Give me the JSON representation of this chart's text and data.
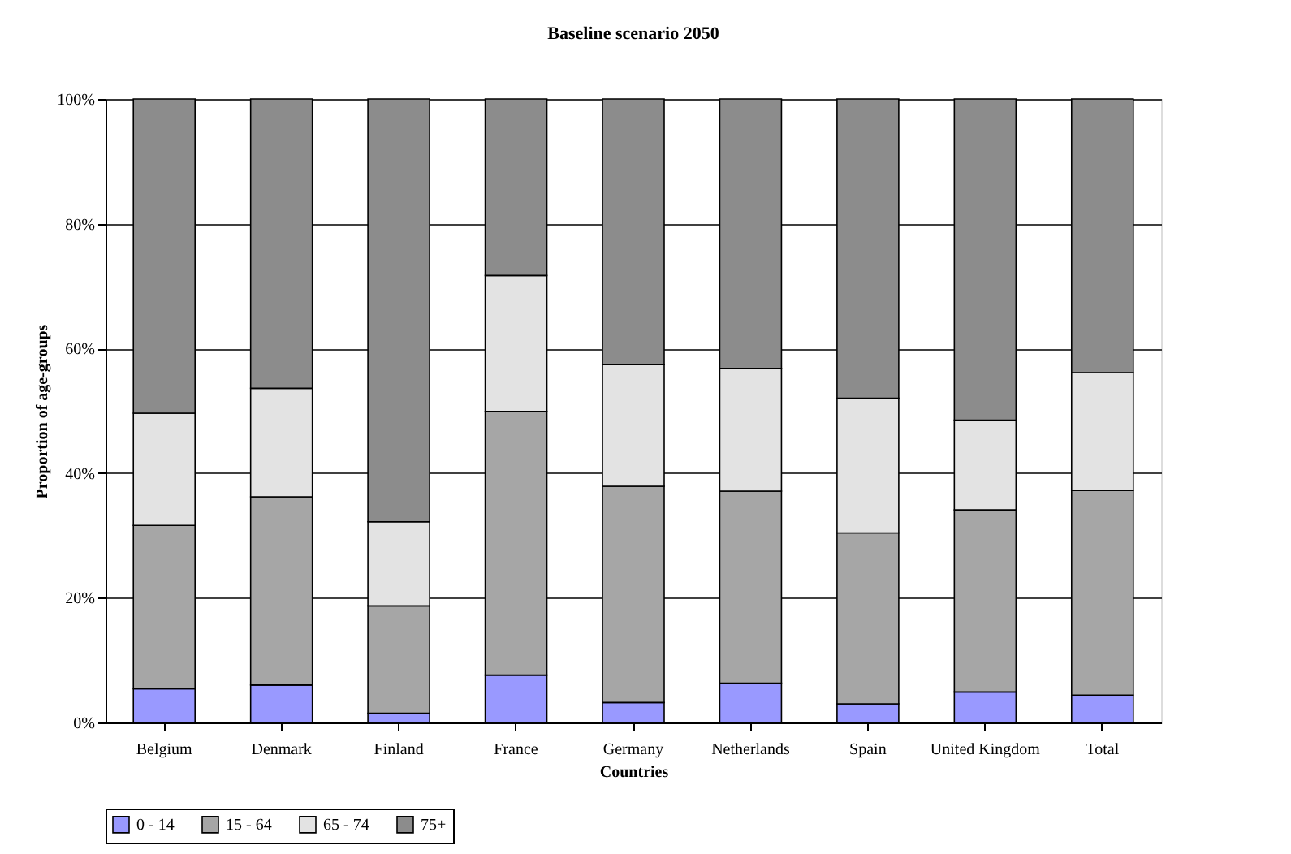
{
  "chart_data": {
    "type": "bar",
    "stacked": true,
    "title": "Baseline scenario 2050",
    "xlabel": "Countries",
    "ylabel": "Proportion of age-groups",
    "categories": [
      "Belgium",
      "Denmark",
      "Finland",
      "France",
      "Germany",
      "Netherlands",
      "Spain",
      "United Kingdom",
      "Total"
    ],
    "series": [
      {
        "name": "0 - 14",
        "color": "#9999ff",
        "values": [
          5.4,
          6.0,
          1.5,
          7.6,
          3.2,
          6.3,
          3.0,
          4.9,
          4.4
        ]
      },
      {
        "name": "15 - 64",
        "color": "#a6a6a6",
        "values": [
          26.2,
          30.2,
          17.2,
          42.3,
          34.7,
          30.8,
          27.4,
          29.2,
          32.8
        ]
      },
      {
        "name": "65 - 74",
        "color": "#e3e3e3",
        "values": [
          18.0,
          17.4,
          13.5,
          21.8,
          19.5,
          19.7,
          21.6,
          14.4,
          18.9
        ]
      },
      {
        "name": "75+",
        "color": "#8c8c8c",
        "values": [
          50.4,
          46.4,
          67.8,
          28.3,
          42.6,
          43.2,
          48.0,
          51.5,
          43.9
        ]
      }
    ],
    "ylim": [
      0,
      100
    ],
    "yticks": [
      {
        "value": 0,
        "label": "0%"
      },
      {
        "value": 20,
        "label": "20%"
      },
      {
        "value": 40,
        "label": "40%"
      },
      {
        "value": 60,
        "label": "60%"
      },
      {
        "value": 80,
        "label": "80%"
      },
      {
        "value": 100,
        "label": "100%"
      }
    ],
    "grid": "y",
    "legend": "bottom"
  }
}
